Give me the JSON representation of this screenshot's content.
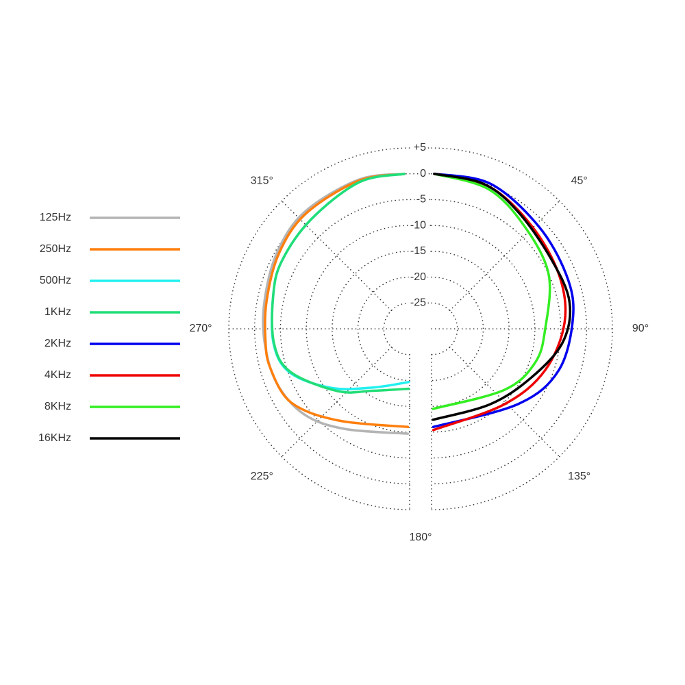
{
  "chart_data": {
    "type": "polar",
    "rlim": [
      -30,
      5
    ],
    "rticks": [
      {
        "value": 5,
        "label": "+5"
      },
      0,
      -5,
      -10,
      -15,
      -20,
      -25
    ],
    "angle_ticks": [
      {
        "value": 45,
        "label": "45°"
      },
      {
        "value": 90,
        "label": "90°"
      },
      {
        "value": 135,
        "label": "135°"
      },
      {
        "value": 180,
        "label": "180°"
      },
      {
        "value": 225,
        "label": "225°"
      },
      {
        "value": 270,
        "label": "270°"
      },
      {
        "value": 315,
        "label": "315°"
      }
    ],
    "grid": true,
    "legend": "left",
    "series": [
      {
        "name": "125Hz",
        "color": "#b4b4b4",
        "theta": [
          181,
          213,
          231,
          248,
          265,
          281,
          300,
          318,
          341,
          358
        ],
        "values": [
          -9.7,
          -6.9,
          -3.7,
          -2.2,
          -1.8,
          -1.4,
          -0.4,
          0.4,
          0.5,
          0
        ]
      },
      {
        "name": "250Hz",
        "color": "#ff7f0e",
        "theta": [
          181,
          218,
          238,
          254,
          265,
          281,
          300,
          318,
          341,
          358
        ],
        "values": [
          -11,
          -7.5,
          -3,
          -2,
          -2,
          -1.8,
          -0.8,
          0,
          0.3,
          0
        ]
      },
      {
        "name": "500Hz",
        "color": "#22f0f0",
        "theta": [
          181,
          212,
          233,
          250,
          264,
          284,
          298,
          318,
          341,
          358
        ],
        "values": [
          -19.7,
          -16.6,
          -11,
          -5.3,
          -3.5,
          -2.8,
          -2,
          -1.5,
          0,
          0
        ]
      },
      {
        "name": "1KHz",
        "color": "#22dd77",
        "theta": [
          181,
          211,
          229,
          250,
          264,
          284,
          298,
          318,
          341,
          358
        ],
        "values": [
          -18.4,
          -16,
          -11.6,
          -5.5,
          -3.6,
          -2.8,
          -2,
          -1.5,
          0,
          0
        ]
      },
      {
        "name": "2KHz",
        "color": "#0000ee",
        "theta": [
          1,
          22,
          46,
          68,
          85,
          108,
          131,
          179
        ],
        "values": [
          0,
          0.3,
          -1.3,
          -1.9,
          -2.5,
          -4.1,
          -7.8,
          -11
        ]
      },
      {
        "name": "4KHz",
        "color": "#ee0000",
        "theta": [
          1,
          22,
          44,
          67,
          87,
          110,
          136,
          179
        ],
        "values": [
          0,
          -0.3,
          -2.2,
          -3.2,
          -4.2,
          -6.6,
          -9.7,
          -10.4
        ]
      },
      {
        "name": "8KHz",
        "color": "#33ee22",
        "theta": [
          1,
          22,
          42,
          65,
          90,
          108,
          130,
          179
        ],
        "values": [
          0,
          -0.8,
          -3.2,
          -5,
          -8,
          -8.9,
          -11.6,
          -14.5
        ]
      },
      {
        "name": "16KHz",
        "color": "#000000",
        "theta": [
          1,
          20,
          37,
          60,
          79,
          96,
          116,
          142,
          179
        ],
        "values": [
          0,
          -0.2,
          -1.9,
          -3.2,
          -2.8,
          -4.5,
          -8.5,
          -11.5,
          -12.4
        ]
      }
    ]
  }
}
